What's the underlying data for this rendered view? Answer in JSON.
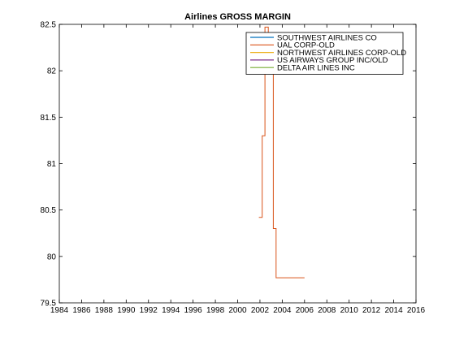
{
  "chart_data": {
    "type": "line",
    "title": "Airlines GROSS MARGIN",
    "xlabel": "",
    "ylabel": "",
    "xlim": [
      1984,
      2016
    ],
    "ylim": [
      79.5,
      82.5
    ],
    "grid": false,
    "legend_position": "top-right",
    "x_ticks": [
      1984,
      1986,
      1988,
      1990,
      1992,
      1994,
      1996,
      1998,
      2000,
      2002,
      2004,
      2006,
      2008,
      2010,
      2012,
      2014,
      2016
    ],
    "y_ticks": [
      79.5,
      80,
      80.5,
      81,
      81.5,
      82,
      82.5
    ],
    "series": [
      {
        "name": "SOUTHWEST AIRLINES CO",
        "color": "#0072bd",
        "x": [],
        "y": []
      },
      {
        "name": "UAL CORP-OLD",
        "color": "#d95319",
        "x": [
          2001.9,
          2002.2,
          2002.2,
          2002.45,
          2002.45,
          2002.75,
          2002.75,
          2003.2,
          2003.2,
          2003.45,
          2003.45,
          2006.0
        ],
        "y": [
          80.42,
          80.42,
          81.3,
          81.3,
          82.47,
          82.47,
          82.05,
          82.05,
          80.3,
          80.3,
          79.77,
          79.77
        ]
      },
      {
        "name": "NORTHWEST AIRLINES CORP-OLD",
        "color": "#edb120",
        "x": [],
        "y": []
      },
      {
        "name": "US AIRWAYS GROUP INC/OLD",
        "color": "#7e2f8e",
        "x": [],
        "y": []
      },
      {
        "name": "DELTA AIR LINES INC",
        "color": "#77ac30",
        "x": [],
        "y": []
      }
    ]
  }
}
